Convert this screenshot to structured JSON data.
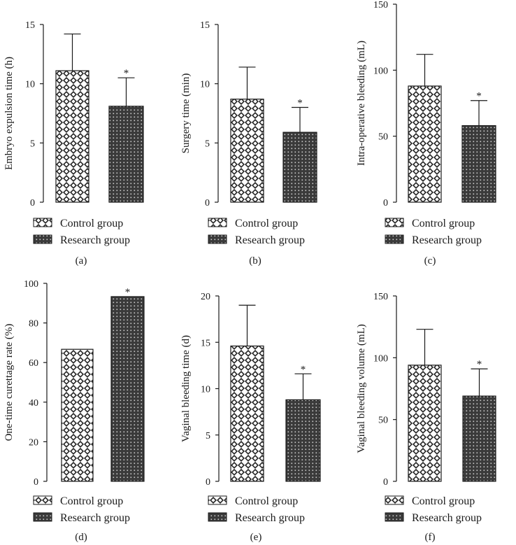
{
  "legend": {
    "control": "Control group",
    "research": "Research group"
  },
  "significance_marker": "*",
  "colors": {
    "axis": "#1a1a1a",
    "bar_stroke": "#1a1a1a",
    "control_bg": "#ffffff",
    "research_bg": "#3a3a3a",
    "pattern": "#222222"
  },
  "chart_data": [
    {
      "panel": "(a)",
      "type": "bar",
      "categories": [
        "Control group",
        "Research group"
      ],
      "values": [
        11.1,
        8.1
      ],
      "errors": [
        3.1,
        2.4
      ],
      "significant": [
        false,
        true
      ],
      "ylabel": "Embryo expulsion time (h)",
      "ylim": [
        0,
        15
      ],
      "yticks": [
        0,
        5,
        10,
        15
      ]
    },
    {
      "panel": "(b)",
      "type": "bar",
      "categories": [
        "Control group",
        "Research group"
      ],
      "values": [
        8.7,
        5.9
      ],
      "errors": [
        2.7,
        2.1
      ],
      "significant": [
        false,
        true
      ],
      "ylabel": "Surgery time (min)",
      "ylim": [
        0,
        15
      ],
      "yticks": [
        0,
        5,
        10,
        15
      ]
    },
    {
      "panel": "(c)",
      "type": "bar",
      "categories": [
        "Control group",
        "Research group"
      ],
      "values": [
        88,
        58
      ],
      "errors": [
        24,
        19
      ],
      "significant": [
        false,
        true
      ],
      "ylabel": "Intra-operative bleeding (mL)",
      "ylim": [
        0,
        150
      ],
      "yticks": [
        0,
        50,
        100,
        150
      ]
    },
    {
      "panel": "(d)",
      "type": "bar",
      "categories": [
        "Control group",
        "Research group"
      ],
      "values": [
        66.7,
        93.3
      ],
      "errors": [
        0,
        0
      ],
      "significant": [
        false,
        true
      ],
      "ylabel": "One-time curettage rate (%)",
      "ylim": [
        0,
        100
      ],
      "yticks": [
        0,
        20,
        40,
        60,
        80,
        100
      ]
    },
    {
      "panel": "(e)",
      "type": "bar",
      "categories": [
        "Control group",
        "Research group"
      ],
      "values": [
        14.6,
        8.8
      ],
      "errors": [
        4.4,
        2.8
      ],
      "significant": [
        false,
        true
      ],
      "ylabel": "Vaginal bleeding time (d)",
      "ylim": [
        0,
        20
      ],
      "yticks": [
        0,
        5,
        10,
        15,
        20
      ]
    },
    {
      "panel": "(f)",
      "type": "bar",
      "categories": [
        "Control group",
        "Research group"
      ],
      "values": [
        94,
        69
      ],
      "errors": [
        29,
        22
      ],
      "significant": [
        false,
        true
      ],
      "ylabel": "Vaginal bleeding volume (mL)",
      "ylim": [
        0,
        150
      ],
      "yticks": [
        0,
        50,
        100,
        150
      ]
    }
  ]
}
